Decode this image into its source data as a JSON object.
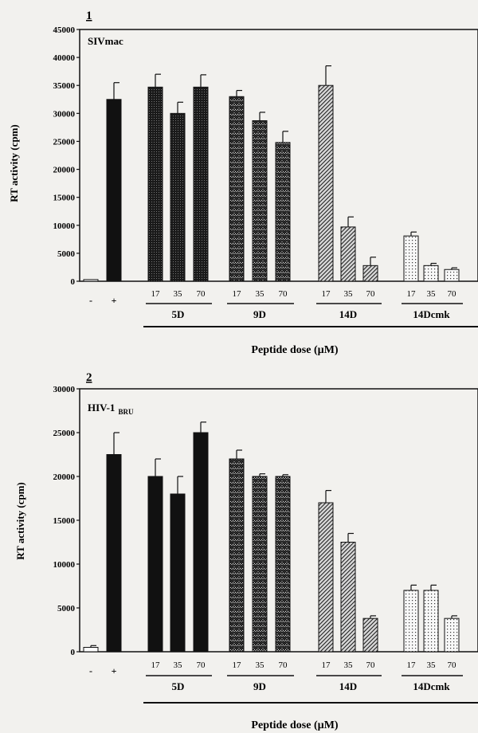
{
  "chart_data": [
    {
      "type": "bar",
      "panel_number": "1",
      "virus_label": "SIVmac",
      "virus_subscript": "",
      "ylabel": "RT activity (cpm)",
      "xlabel": "Peptide dose (µM)",
      "ylim": [
        0,
        45000
      ],
      "yticks": [
        0,
        5000,
        10000,
        15000,
        20000,
        25000,
        30000,
        35000,
        40000,
        45000
      ],
      "controls": [
        {
          "label": "-",
          "value": 300,
          "error": 0,
          "pattern": "white"
        },
        {
          "label": "+",
          "value": 32500,
          "error": 3000,
          "pattern": "black"
        }
      ],
      "groups": [
        {
          "name": "5D",
          "pattern": "dots-dark",
          "doses": [
            "17",
            "35",
            "70"
          ],
          "values": [
            34700,
            30000,
            34700
          ],
          "errors": [
            2300,
            2000,
            2200
          ]
        },
        {
          "name": "9D",
          "pattern": "zigzag",
          "doses": [
            "17",
            "35",
            "70"
          ],
          "values": [
            33000,
            28700,
            24800
          ],
          "errors": [
            1100,
            1500,
            2000
          ]
        },
        {
          "name": "14D",
          "pattern": "diagonal",
          "doses": [
            "17",
            "35",
            "70"
          ],
          "values": [
            35000,
            9700,
            2800
          ],
          "errors": [
            3500,
            1800,
            1500
          ]
        },
        {
          "name": "14Dcmk",
          "pattern": "dots-light",
          "doses": [
            "17",
            "35",
            "70"
          ],
          "values": [
            8100,
            2800,
            2100
          ],
          "errors": [
            700,
            400,
            300
          ]
        }
      ]
    },
    {
      "type": "bar",
      "panel_number": "2",
      "virus_label": "HIV-1",
      "virus_subscript": "BRU",
      "ylabel": "RT activity (cpm)",
      "xlabel": "Peptide dose (µM)",
      "ylim": [
        0,
        30000
      ],
      "yticks": [
        0,
        5000,
        10000,
        15000,
        20000,
        25000,
        30000
      ],
      "controls": [
        {
          "label": "-",
          "value": 500,
          "error": 200,
          "pattern": "white"
        },
        {
          "label": "+",
          "value": 22500,
          "error": 2500,
          "pattern": "black"
        }
      ],
      "groups": [
        {
          "name": "5D",
          "pattern": "black",
          "doses": [
            "17",
            "35",
            "70"
          ],
          "values": [
            20000,
            18000,
            25000
          ],
          "errors": [
            2000,
            2000,
            1200
          ]
        },
        {
          "name": "9D",
          "pattern": "zigzag",
          "doses": [
            "17",
            "35",
            "70"
          ],
          "values": [
            22000,
            20000,
            20000
          ],
          "errors": [
            1000,
            300,
            200
          ]
        },
        {
          "name": "14D",
          "pattern": "diagonal",
          "doses": [
            "17",
            "35",
            "70"
          ],
          "values": [
            17000,
            12500,
            3800
          ],
          "errors": [
            1400,
            1000,
            300
          ]
        },
        {
          "name": "14Dcmk",
          "pattern": "dots-light",
          "doses": [
            "17",
            "35",
            "70"
          ],
          "values": [
            7000,
            7000,
            3800
          ],
          "errors": [
            600,
            600,
            300
          ]
        }
      ]
    }
  ]
}
